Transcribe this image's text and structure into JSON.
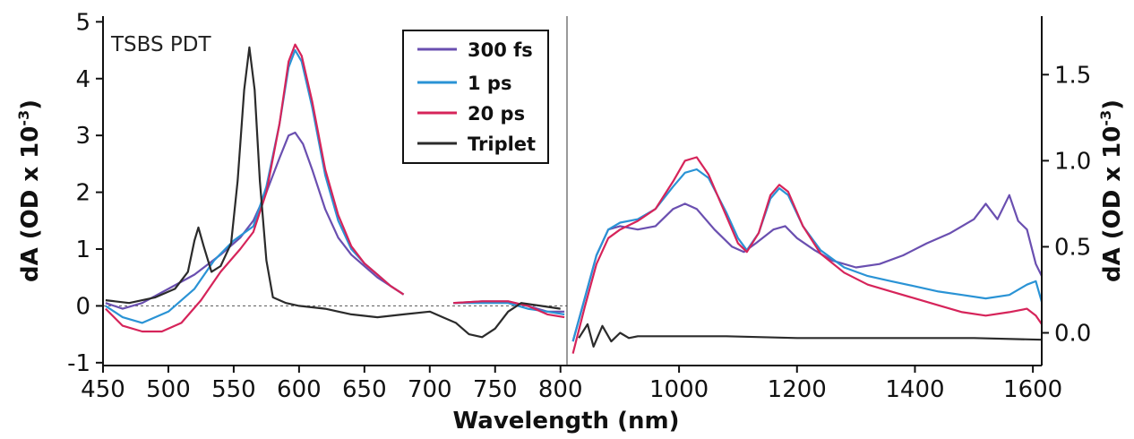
{
  "chart_data": [
    {
      "type": "line",
      "panel": "left",
      "annotation": "TSBS PDT",
      "xlabel": "Wavelength (nm)",
      "ylabel": "dA (OD x 10",
      "ylabel_sup": "-3",
      "ylabel_close": ")",
      "xlim": [
        450,
        805
      ],
      "ylim": [
        -1.05,
        5.1
      ],
      "xticks": [
        450,
        500,
        550,
        600,
        650,
        700,
        750,
        800
      ],
      "yticks": [
        -1,
        0,
        1,
        2,
        3,
        4,
        5
      ],
      "zero_line": 0,
      "series": [
        {
          "name": "300 fs",
          "color": "#6a4fb0",
          "segments": [
            [
              [
                452,
                0.05
              ],
              [
                465,
                -0.05
              ],
              [
                480,
                0.05
              ],
              [
                500,
                0.3
              ],
              [
                520,
                0.55
              ],
              [
                540,
                0.9
              ],
              [
                555,
                1.2
              ],
              [
                565,
                1.5
              ],
              [
                575,
                2.0
              ],
              [
                585,
                2.6
              ],
              [
                592,
                3.0
              ],
              [
                597,
                3.05
              ],
              [
                603,
                2.85
              ],
              [
                610,
                2.4
              ],
              [
                620,
                1.7
              ],
              [
                630,
                1.2
              ],
              [
                640,
                0.9
              ],
              [
                650,
                0.7
              ],
              [
                660,
                0.5
              ],
              [
                670,
                0.35
              ],
              [
                680,
                0.2
              ]
            ],
            [
              [
                718,
                0.05
              ],
              [
                740,
                0.08
              ],
              [
                760,
                0.08
              ],
              [
                775,
                0.0
              ],
              [
                790,
                -0.1
              ],
              [
                803,
                -0.1
              ]
            ]
          ]
        },
        {
          "name": "1 ps",
          "color": "#2a93d5",
          "segments": [
            [
              [
                452,
                0.0
              ],
              [
                465,
                -0.2
              ],
              [
                480,
                -0.3
              ],
              [
                500,
                -0.1
              ],
              [
                520,
                0.3
              ],
              [
                535,
                0.8
              ],
              [
                550,
                1.15
              ],
              [
                565,
                1.4
              ],
              [
                575,
                2.1
              ],
              [
                585,
                3.2
              ],
              [
                592,
                4.2
              ],
              [
                597,
                4.5
              ],
              [
                602,
                4.3
              ],
              [
                610,
                3.5
              ],
              [
                620,
                2.3
              ],
              [
                630,
                1.5
              ],
              [
                640,
                1.0
              ],
              [
                650,
                0.75
              ],
              [
                660,
                0.55
              ],
              [
                670,
                0.35
              ],
              [
                680,
                0.2
              ]
            ],
            [
              [
                718,
                0.05
              ],
              [
                740,
                0.05
              ],
              [
                760,
                0.05
              ],
              [
                775,
                -0.05
              ],
              [
                790,
                -0.1
              ],
              [
                803,
                -0.15
              ]
            ]
          ]
        },
        {
          "name": "20 ps",
          "color": "#d6245a",
          "segments": [
            [
              [
                452,
                -0.05
              ],
              [
                465,
                -0.35
              ],
              [
                480,
                -0.45
              ],
              [
                495,
                -0.45
              ],
              [
                510,
                -0.3
              ],
              [
                525,
                0.1
              ],
              [
                540,
                0.6
              ],
              [
                555,
                1.0
              ],
              [
                565,
                1.3
              ],
              [
                575,
                2.0
              ],
              [
                585,
                3.2
              ],
              [
                592,
                4.3
              ],
              [
                597,
                4.6
              ],
              [
                602,
                4.4
              ],
              [
                610,
                3.6
              ],
              [
                620,
                2.4
              ],
              [
                630,
                1.6
              ],
              [
                640,
                1.05
              ],
              [
                650,
                0.75
              ],
              [
                660,
                0.55
              ],
              [
                670,
                0.35
              ],
              [
                680,
                0.2
              ]
            ],
            [
              [
                718,
                0.05
              ],
              [
                740,
                0.08
              ],
              [
                760,
                0.08
              ],
              [
                775,
                0.0
              ],
              [
                790,
                -0.15
              ],
              [
                803,
                -0.2
              ]
            ]
          ]
        },
        {
          "name": "Triplet",
          "color": "#2b2b2b",
          "segments": [
            [
              [
                452,
                0.1
              ],
              [
                470,
                0.05
              ],
              [
                490,
                0.15
              ],
              [
                505,
                0.3
              ],
              [
                515,
                0.6
              ],
              [
                520,
                1.15
              ],
              [
                523,
                1.38
              ],
              [
                527,
                1.05
              ],
              [
                533,
                0.6
              ],
              [
                540,
                0.7
              ],
              [
                548,
                1.1
              ],
              [
                553,
                2.2
              ],
              [
                558,
                3.8
              ],
              [
                562,
                4.55
              ],
              [
                566,
                3.8
              ],
              [
                570,
                2.2
              ],
              [
                575,
                0.8
              ],
              [
                580,
                0.15
              ],
              [
                590,
                0.05
              ],
              [
                600,
                0.0
              ],
              [
                620,
                -0.05
              ],
              [
                640,
                -0.15
              ],
              [
                660,
                -0.2
              ],
              [
                680,
                -0.15
              ],
              [
                700,
                -0.1
              ],
              [
                710,
                -0.2
              ],
              [
                720,
                -0.3
              ],
              [
                730,
                -0.5
              ],
              [
                740,
                -0.55
              ],
              [
                750,
                -0.4
              ],
              [
                760,
                -0.1
              ],
              [
                770,
                0.05
              ],
              [
                785,
                0.0
              ],
              [
                800,
                -0.05
              ]
            ]
          ]
        }
      ]
    },
    {
      "type": "line",
      "panel": "right",
      "xlabel": "",
      "ylabel": "dA (OD x 10",
      "ylabel_sup": "-3",
      "ylabel_close": ")",
      "xlim": [
        810,
        1615
      ],
      "ylim": [
        -0.19,
        1.84
      ],
      "xticks": [
        1000,
        1200,
        1400,
        1600
      ],
      "yticks": [
        0.0,
        0.5,
        1.0,
        1.5
      ],
      "ytick_labels": [
        "0.0",
        "0.5",
        "1.0",
        "1.5"
      ],
      "series": [
        {
          "name": "300 fs",
          "color": "#6a4fb0",
          "segments": [
            [
              [
                820,
                -0.05
              ],
              [
                840,
                0.2
              ],
              [
                860,
                0.45
              ],
              [
                880,
                0.6
              ],
              [
                900,
                0.62
              ],
              [
                930,
                0.6
              ],
              [
                960,
                0.62
              ],
              [
                990,
                0.72
              ],
              [
                1010,
                0.75
              ],
              [
                1030,
                0.72
              ],
              [
                1060,
                0.6
              ],
              [
                1090,
                0.5
              ],
              [
                1110,
                0.47
              ],
              [
                1130,
                0.52
              ],
              [
                1160,
                0.6
              ],
              [
                1180,
                0.62
              ],
              [
                1200,
                0.55
              ],
              [
                1230,
                0.48
              ],
              [
                1260,
                0.42
              ],
              [
                1300,
                0.38
              ],
              [
                1340,
                0.4
              ],
              [
                1380,
                0.45
              ],
              [
                1420,
                0.52
              ],
              [
                1460,
                0.58
              ],
              [
                1500,
                0.66
              ],
              [
                1520,
                0.75
              ],
              [
                1540,
                0.66
              ],
              [
                1560,
                0.8
              ],
              [
                1575,
                0.65
              ],
              [
                1590,
                0.6
              ],
              [
                1605,
                0.4
              ],
              [
                1615,
                0.33
              ]
            ]
          ]
        },
        {
          "name": "1 ps",
          "color": "#2a93d5",
          "segments": [
            [
              [
                820,
                -0.05
              ],
              [
                840,
                0.2
              ],
              [
                860,
                0.45
              ],
              [
                880,
                0.6
              ],
              [
                900,
                0.64
              ],
              [
                930,
                0.66
              ],
              [
                960,
                0.72
              ],
              [
                990,
                0.85
              ],
              [
                1010,
                0.93
              ],
              [
                1030,
                0.95
              ],
              [
                1050,
                0.9
              ],
              [
                1080,
                0.7
              ],
              [
                1100,
                0.55
              ],
              [
                1115,
                0.48
              ],
              [
                1135,
                0.58
              ],
              [
                1155,
                0.78
              ],
              [
                1170,
                0.84
              ],
              [
                1185,
                0.8
              ],
              [
                1210,
                0.62
              ],
              [
                1240,
                0.48
              ],
              [
                1280,
                0.38
              ],
              [
                1320,
                0.33
              ],
              [
                1360,
                0.3
              ],
              [
                1400,
                0.27
              ],
              [
                1440,
                0.24
              ],
              [
                1480,
                0.22
              ],
              [
                1520,
                0.2
              ],
              [
                1560,
                0.22
              ],
              [
                1590,
                0.28
              ],
              [
                1605,
                0.3
              ],
              [
                1615,
                0.18
              ]
            ]
          ]
        },
        {
          "name": "20 ps",
          "color": "#d6245a",
          "segments": [
            [
              [
                820,
                -0.12
              ],
              [
                840,
                0.15
              ],
              [
                860,
                0.4
              ],
              [
                880,
                0.55
              ],
              [
                900,
                0.6
              ],
              [
                930,
                0.65
              ],
              [
                960,
                0.72
              ],
              [
                990,
                0.88
              ],
              [
                1010,
                1.0
              ],
              [
                1030,
                1.02
              ],
              [
                1050,
                0.92
              ],
              [
                1080,
                0.68
              ],
              [
                1100,
                0.52
              ],
              [
                1115,
                0.47
              ],
              [
                1135,
                0.58
              ],
              [
                1155,
                0.8
              ],
              [
                1170,
                0.86
              ],
              [
                1185,
                0.82
              ],
              [
                1210,
                0.62
              ],
              [
                1240,
                0.46
              ],
              [
                1280,
                0.35
              ],
              [
                1320,
                0.28
              ],
              [
                1360,
                0.24
              ],
              [
                1400,
                0.2
              ],
              [
                1440,
                0.16
              ],
              [
                1480,
                0.12
              ],
              [
                1520,
                0.1
              ],
              [
                1560,
                0.12
              ],
              [
                1590,
                0.14
              ],
              [
                1605,
                0.1
              ],
              [
                1615,
                0.05
              ]
            ]
          ]
        },
        {
          "name": "Triplet",
          "color": "#2b2b2b",
          "segments": [
            [
              [
                830,
                -0.03
              ],
              [
                845,
                0.05
              ],
              [
                855,
                -0.08
              ],
              [
                870,
                0.04
              ],
              [
                885,
                -0.05
              ],
              [
                900,
                0.0
              ],
              [
                915,
                -0.03
              ],
              [
                930,
                -0.02
              ],
              [
                1000,
                -0.02
              ],
              [
                1080,
                -0.02
              ],
              [
                1200,
                -0.03
              ],
              [
                1300,
                -0.03
              ],
              [
                1400,
                -0.03
              ],
              [
                1500,
                -0.03
              ],
              [
                1615,
                -0.04
              ]
            ]
          ]
        }
      ]
    }
  ],
  "legend": {
    "items": [
      {
        "label": "300 fs",
        "color": "#6a4fb0"
      },
      {
        "label": "1 ps",
        "color": "#2a93d5"
      },
      {
        "label": "20 ps",
        "color": "#d6245a"
      },
      {
        "label": "Triplet",
        "color": "#2b2b2b"
      }
    ]
  }
}
